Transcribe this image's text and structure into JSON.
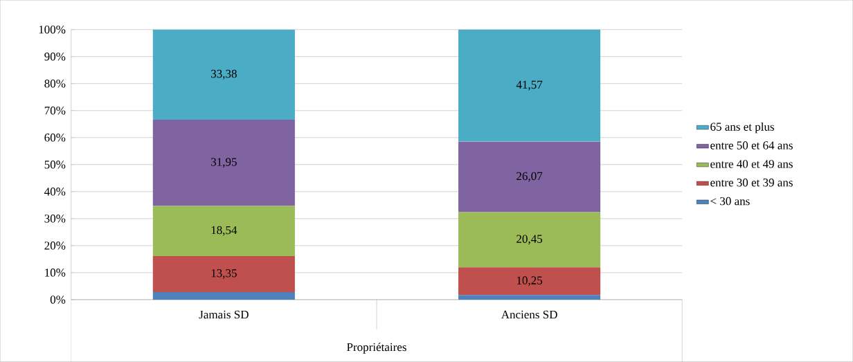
{
  "chart_data": {
    "type": "bar",
    "stacked": true,
    "categories": [
      "Jamais SD",
      "Anciens SD"
    ],
    "xlabel": "Propriétaires",
    "series": [
      {
        "name": "< 30 ans",
        "color": "#4f81bd",
        "values": [
          2.8,
          1.7
        ],
        "value_labels": [
          null,
          null
        ]
      },
      {
        "name": "entre 30 et 39 ans",
        "color": "#c0504d",
        "values": [
          13.35,
          10.25
        ],
        "value_labels": [
          "13,35",
          "10,25"
        ]
      },
      {
        "name": "entre 40 et 49 ans",
        "color": "#9bbb59",
        "values": [
          18.54,
          20.45
        ],
        "value_labels": [
          "18,54",
          "20,45"
        ]
      },
      {
        "name": "entre 50 et 64 ans",
        "color": "#8064a2",
        "values": [
          31.95,
          26.07
        ],
        "value_labels": [
          "31,95",
          "26,07"
        ]
      },
      {
        "name": "65 ans et plus",
        "color": "#4bacc6",
        "values": [
          33.38,
          41.57
        ],
        "value_labels": [
          "33,38",
          "41,57"
        ]
      }
    ],
    "ylim": [
      0,
      100
    ],
    "yticks": [
      {
        "value": 0,
        "label": "0%"
      },
      {
        "value": 10,
        "label": "10%"
      },
      {
        "value": 20,
        "label": "20%"
      },
      {
        "value": 30,
        "label": "30%"
      },
      {
        "value": 40,
        "label": "40%"
      },
      {
        "value": 50,
        "label": "50%"
      },
      {
        "value": 60,
        "label": "60%"
      },
      {
        "value": 70,
        "label": "70%"
      },
      {
        "value": 80,
        "label": "80%"
      },
      {
        "value": 90,
        "label": "90%"
      },
      {
        "value": 100,
        "label": "100%"
      }
    ],
    "grid": "y",
    "legend": "right"
  }
}
